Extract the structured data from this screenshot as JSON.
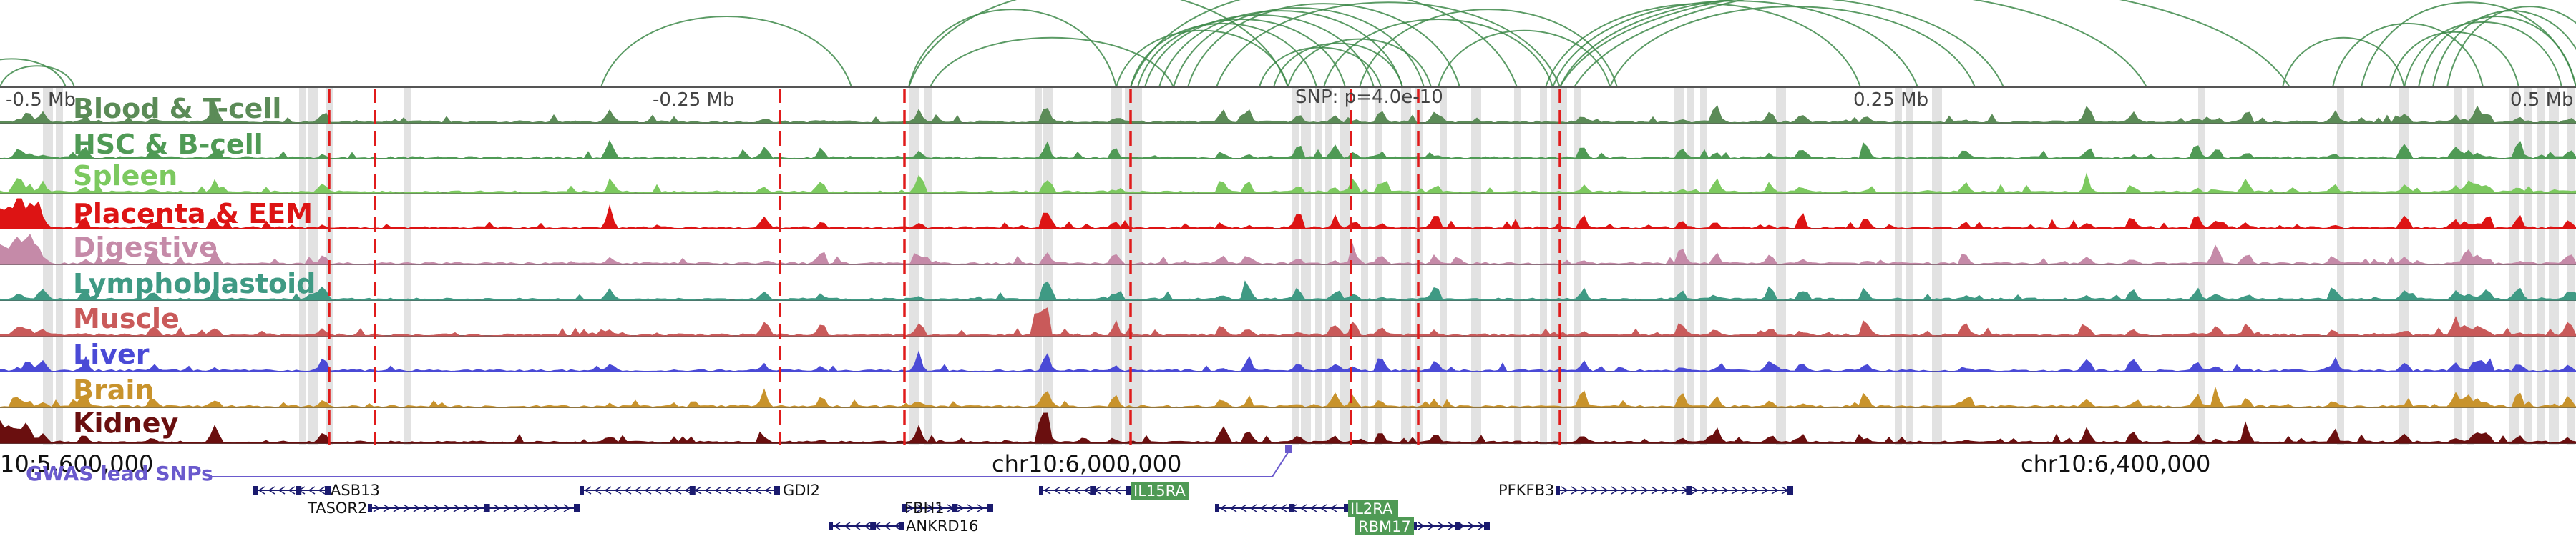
{
  "browser": {
    "scale_labels": {
      "left_end": "-0.5 Mb",
      "left_mid": "-0.25 Mb",
      "snp": "SNP: p=4.0e-10",
      "right_mid": "0.25 Mb",
      "right_end": "0.5 Mb"
    },
    "tracks": [
      {
        "label": "Blood & T-cell",
        "color": "#5b8b57"
      },
      {
        "label": "HSC & B-cell",
        "color": "#4f9a55"
      },
      {
        "label": "Spleen",
        "color": "#7cc95f"
      },
      {
        "label": "Placenta & EEM",
        "color": "#dd1414"
      },
      {
        "label": "Digestive",
        "color": "#c58aa8"
      },
      {
        "label": "Lymphoblastoid",
        "color": "#3f9a84"
      },
      {
        "label": "Muscle",
        "color": "#c95a5a"
      },
      {
        "label": "Liver",
        "color": "#4a4ad6"
      },
      {
        "label": "Brain",
        "color": "#c8932c"
      },
      {
        "label": "Kidney",
        "color": "#6a0f0f"
      }
    ],
    "coordinates": [
      "10:5,600,000",
      "chr10:6,000,000",
      "chr10:6,400,000"
    ],
    "gwas": {
      "label": "GWAS lead SNPs",
      "color": "#6a5acd"
    },
    "genes": [
      {
        "name": "ASB13",
        "strand": "-"
      },
      {
        "name": "TASOR2",
        "strand": "+"
      },
      {
        "name": "GDI2",
        "strand": "-"
      },
      {
        "name": "FBH1",
        "strand": "+"
      },
      {
        "name": "ANKRD16",
        "strand": "-"
      },
      {
        "name": "IL15RA",
        "strand": "-",
        "highlight": true
      },
      {
        "name": "IL2RA",
        "strand": "-",
        "highlight": true
      },
      {
        "name": "RBM17",
        "strand": "+",
        "highlight": true
      },
      {
        "name": "PFKFB3",
        "strand": "+"
      }
    ],
    "colors": {
      "arc": "#3e8a4a",
      "snp_line": "#e01b1b",
      "highlight_band": "#e2e2e2",
      "gene_highlight": "#4f9a55",
      "gene_body": "#1a1a6e"
    }
  }
}
